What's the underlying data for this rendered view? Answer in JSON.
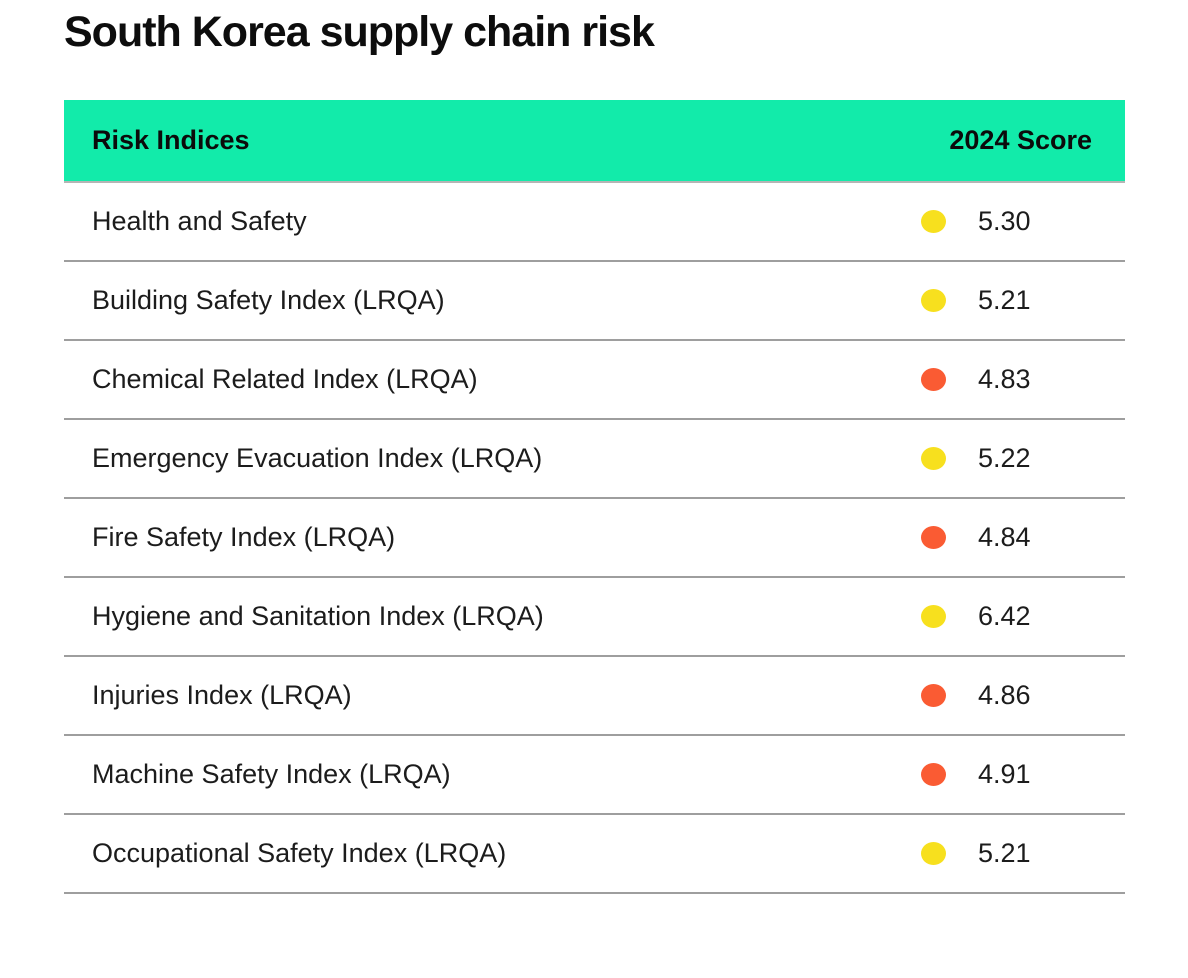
{
  "title": "South Korea supply chain risk",
  "colors": {
    "header_bg": "#12EBAA",
    "yellow": "#F7E01E",
    "orange": "#FA5B33",
    "separator": "#9E9E9E"
  },
  "chart_data": {
    "type": "table",
    "title": "South Korea supply chain risk",
    "columns": [
      "Risk Indices",
      "2024 Score"
    ],
    "rows": [
      {
        "label": "Health and Safety",
        "score": "5.30",
        "dot_color": "yellow"
      },
      {
        "label": "Building Safety Index (LRQA)",
        "score": "5.21",
        "dot_color": "yellow"
      },
      {
        "label": "Chemical Related Index (LRQA)",
        "score": "4.83",
        "dot_color": "orange"
      },
      {
        "label": "Emergency Evacuation Index (LRQA)",
        "score": "5.22",
        "dot_color": "yellow"
      },
      {
        "label": "Fire Safety Index (LRQA)",
        "score": "4.84",
        "dot_color": "orange"
      },
      {
        "label": "Hygiene and Sanitation Index (LRQA)",
        "score": "6.42",
        "dot_color": "yellow"
      },
      {
        "label": "Injuries Index (LRQA)",
        "score": "4.86",
        "dot_color": "orange"
      },
      {
        "label": "Machine Safety Index (LRQA)",
        "score": "4.91",
        "dot_color": "orange"
      },
      {
        "label": "Occupational Safety Index (LRQA)",
        "score": "5.21",
        "dot_color": "yellow"
      }
    ]
  }
}
